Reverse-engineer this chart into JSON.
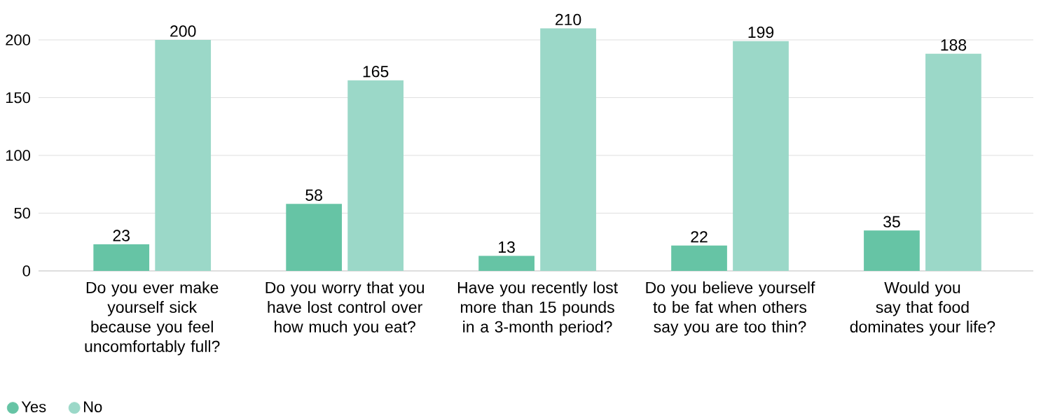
{
  "chart_data": {
    "type": "bar",
    "categories": [
      "Do you ever make yourself sick because you feel uncomfortably full?",
      "Do you worry that you have lost control over how much you eat?",
      "Have you recently lost more than 15 pounds in a 3-month period?",
      "Do you believe yourself to be fat when others say you are too thin?",
      "Would you say that food dominates your life?"
    ],
    "series": [
      {
        "name": "Yes",
        "color": "#66c4a5",
        "values": [
          23,
          58,
          13,
          22,
          35
        ]
      },
      {
        "name": "No",
        "color": "#9bd8c8",
        "values": [
          200,
          165,
          210,
          199,
          188
        ]
      }
    ],
    "ylim": [
      0,
      210
    ],
    "yticks": [
      0,
      50,
      100,
      150,
      200
    ],
    "grid": "y",
    "legend": "bottom left",
    "data_labels": true
  }
}
